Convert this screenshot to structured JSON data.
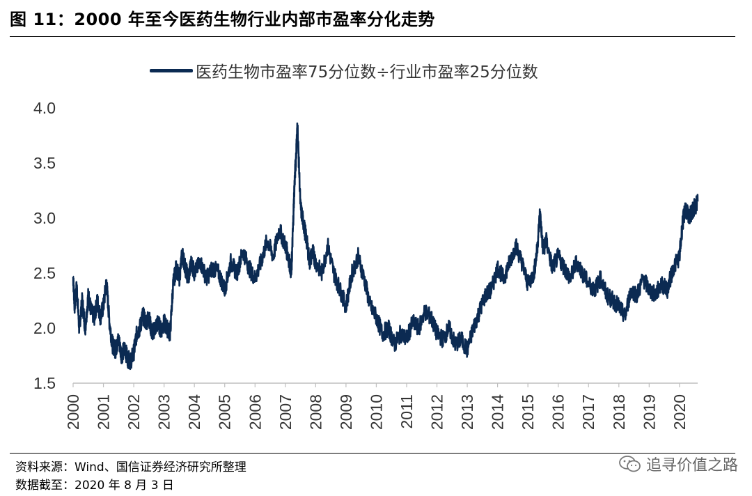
{
  "header": {
    "title": "图 11：2000 年至今医药生物行业内部市盈率分化走势"
  },
  "legend": {
    "label": "医药生物市盈率75分位数÷行业市盈率25分位数"
  },
  "footer": {
    "source": "资料来源：Wind、国信证券经济研究所整理",
    "date": "数据截至：2020 年 8 月 3 日"
  },
  "watermark": {
    "text": "追寻价值之路",
    "icon": "wechat-icon"
  },
  "colors": {
    "series": "#0b2a52",
    "axis": "#bfbfbf"
  },
  "chart_data": {
    "type": "line",
    "title": "",
    "xlabel": "",
    "ylabel": "",
    "ylim": [
      1.5,
      4.0
    ],
    "yticks": [
      "1.5",
      "2.0",
      "2.5",
      "3.0",
      "3.5",
      "4.0"
    ],
    "xlim": [
      2000,
      2020.6
    ],
    "xticks": [
      "2000",
      "2001",
      "2002",
      "2003",
      "2004",
      "2005",
      "2006",
      "2007",
      "2008",
      "2009",
      "2010",
      "2011",
      "2012",
      "2013",
      "2014",
      "2015",
      "2016",
      "2017",
      "2018",
      "2019",
      "2020"
    ],
    "grid": false,
    "legend_position": "top-center",
    "series": [
      {
        "name": "医药生物市盈率75分位数÷行业市盈率25分位数",
        "x": [
          2000.0,
          2000.05,
          2000.12,
          2000.2,
          2000.3,
          2000.4,
          2000.5,
          2000.6,
          2000.7,
          2000.8,
          2000.9,
          2001.0,
          2001.1,
          2001.2,
          2001.3,
          2001.4,
          2001.5,
          2001.6,
          2001.7,
          2001.8,
          2001.9,
          2002.0,
          2002.1,
          2002.2,
          2002.3,
          2002.4,
          2002.5,
          2002.6,
          2002.7,
          2002.8,
          2002.9,
          2003.0,
          2003.1,
          2003.2,
          2003.3,
          2003.4,
          2003.5,
          2003.6,
          2003.7,
          2003.8,
          2003.9,
          2004.0,
          2004.2,
          2004.4,
          2004.6,
          2004.8,
          2005.0,
          2005.2,
          2005.4,
          2005.6,
          2005.8,
          2006.0,
          2006.2,
          2006.4,
          2006.6,
          2006.8,
          2007.0,
          2007.1,
          2007.2,
          2007.25,
          2007.3,
          2007.35,
          2007.4,
          2007.5,
          2007.6,
          2007.7,
          2007.8,
          2007.9,
          2008.0,
          2008.2,
          2008.4,
          2008.6,
          2008.8,
          2009.0,
          2009.2,
          2009.4,
          2009.6,
          2009.8,
          2010.0,
          2010.2,
          2010.4,
          2010.6,
          2010.8,
          2011.0,
          2011.2,
          2011.4,
          2011.6,
          2011.8,
          2012.0,
          2012.2,
          2012.4,
          2012.6,
          2012.8,
          2013.0,
          2013.2,
          2013.4,
          2013.6,
          2013.8,
          2014.0,
          2014.2,
          2014.4,
          2014.6,
          2014.8,
          2015.0,
          2015.2,
          2015.3,
          2015.4,
          2015.5,
          2015.6,
          2015.8,
          2016.0,
          2016.2,
          2016.4,
          2016.6,
          2016.8,
          2017.0,
          2017.2,
          2017.4,
          2017.6,
          2017.8,
          2018.0,
          2018.2,
          2018.4,
          2018.6,
          2018.8,
          2019.0,
          2019.2,
          2019.4,
          2019.6,
          2019.8,
          2020.0,
          2020.1,
          2020.2,
          2020.3,
          2020.4,
          2020.5,
          2020.6
        ],
        "values": [
          2.47,
          2.2,
          2.38,
          2.0,
          2.25,
          2.0,
          2.3,
          2.15,
          2.1,
          2.25,
          2.1,
          2.2,
          2.42,
          2.05,
          1.85,
          1.8,
          1.9,
          1.75,
          1.82,
          1.72,
          1.7,
          1.78,
          1.95,
          2.0,
          2.12,
          2.05,
          2.1,
          1.95,
          2.0,
          2.05,
          1.98,
          2.05,
          2.0,
          1.95,
          2.4,
          2.55,
          2.45,
          2.68,
          2.55,
          2.45,
          2.6,
          2.5,
          2.6,
          2.45,
          2.55,
          2.5,
          2.35,
          2.6,
          2.5,
          2.7,
          2.55,
          2.45,
          2.6,
          2.8,
          2.65,
          2.9,
          2.75,
          2.65,
          2.5,
          2.9,
          3.3,
          3.55,
          3.85,
          3.1,
          2.95,
          2.8,
          2.6,
          2.7,
          2.6,
          2.5,
          2.75,
          2.5,
          2.35,
          2.2,
          2.5,
          2.65,
          2.45,
          2.2,
          2.1,
          1.95,
          2.0,
          1.85,
          1.95,
          1.9,
          2.05,
          2.0,
          2.15,
          2.1,
          1.95,
          1.9,
          2.0,
          1.85,
          1.9,
          1.8,
          2.0,
          2.15,
          2.3,
          2.35,
          2.55,
          2.45,
          2.6,
          2.75,
          2.6,
          2.4,
          2.5,
          2.7,
          3.05,
          2.7,
          2.8,
          2.55,
          2.65,
          2.55,
          2.45,
          2.6,
          2.5,
          2.4,
          2.35,
          2.45,
          2.3,
          2.25,
          2.2,
          2.1,
          2.35,
          2.3,
          2.45,
          2.35,
          2.3,
          2.4,
          2.35,
          2.55,
          2.65,
          2.95,
          3.1,
          3.0,
          3.05,
          3.1,
          3.15
        ]
      }
    ]
  }
}
